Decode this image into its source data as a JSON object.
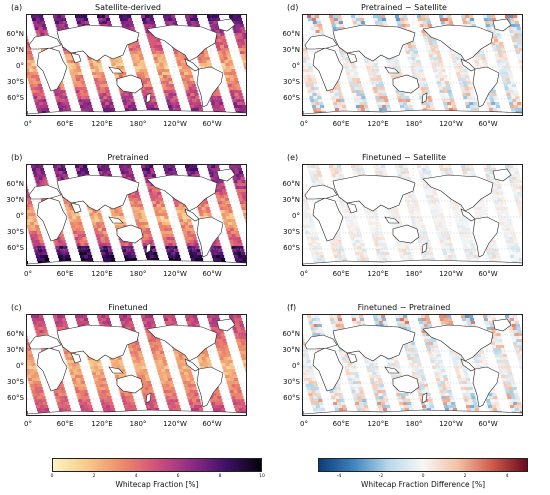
{
  "panels": [
    {
      "id": "a",
      "letter": "(a)",
      "title": "Satellite-derived",
      "colormap": "sequential"
    },
    {
      "id": "d",
      "letter": "(d)",
      "title": "Pretrained − Satellite",
      "colormap": "diverging"
    },
    {
      "id": "b",
      "letter": "(b)",
      "title": "Pretrained",
      "colormap": "sequential"
    },
    {
      "id": "e",
      "letter": "(e)",
      "title": "Finetuned − Satellite",
      "colormap": "diverging"
    },
    {
      "id": "c",
      "letter": "(c)",
      "title": "Finetuned",
      "colormap": "sequential"
    },
    {
      "id": "f",
      "letter": "(f)",
      "title": "Finetuned − Pretrained",
      "colormap": "diverging"
    }
  ],
  "lat_labels": [
    "60°N",
    "30°N",
    "0°",
    "30°S",
    "60°S"
  ],
  "lon_labels": [
    "0°",
    "60°E",
    "120°E",
    "180°",
    "120°W",
    "60°W"
  ],
  "colorbars": {
    "sequential": {
      "label": "Whitecap Fraction [%]",
      "ticks": [
        "0",
        "2",
        "4",
        "6",
        "8",
        "10"
      ],
      "colors": [
        "#fcf4c2",
        "#f7c98a",
        "#ee8a6a",
        "#d0507a",
        "#8f2b86",
        "#3f0f6a",
        "#050307"
      ]
    },
    "diverging": {
      "label": "Whitecap Fraction Difference [%]",
      "ticks": [
        "-4",
        "-2",
        "0",
        "2",
        "4"
      ],
      "colors": [
        "#0b3c78",
        "#3f84c0",
        "#b7d8ea",
        "#f7f7f7",
        "#f4c1a6",
        "#cf5a4a",
        "#6a0a1f"
      ]
    }
  }
}
